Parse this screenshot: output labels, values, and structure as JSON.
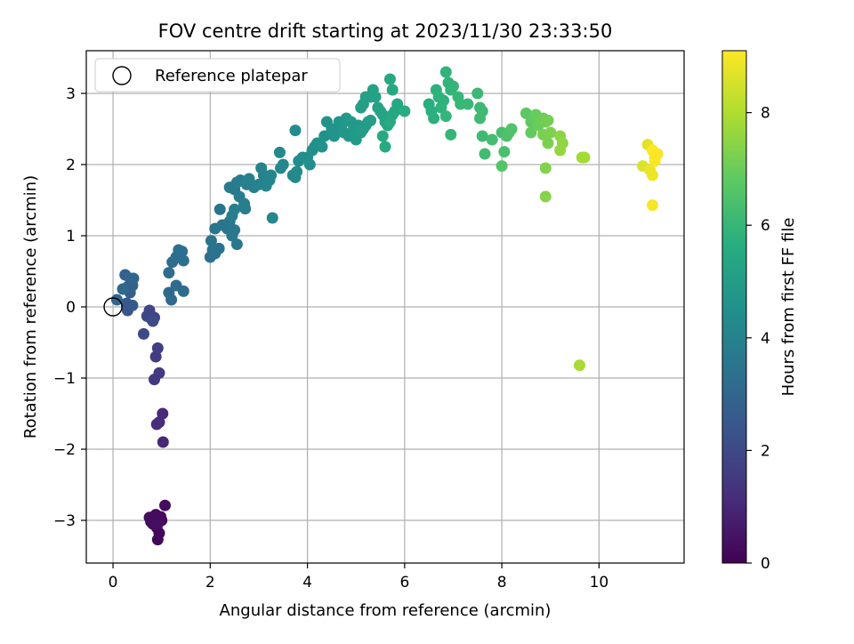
{
  "chart_data": {
    "type": "scatter",
    "title": "FOV centre drift starting at 2023/11/30 23:33:50",
    "xlabel": "Angular distance from reference (arcmin)",
    "ylabel": "Rotation from reference (arcmin)",
    "xlim": [
      -0.55,
      11.75
    ],
    "ylim": [
      -3.6,
      3.6
    ],
    "xticks": [
      0,
      2,
      4,
      6,
      8,
      10
    ],
    "yticks": [
      -3,
      -2,
      -1,
      0,
      1,
      2,
      3
    ],
    "xtick_labels": [
      "0",
      "2",
      "4",
      "6",
      "8",
      "10"
    ],
    "ytick_labels": [
      "−3",
      "−2",
      "−1",
      "0",
      "1",
      "2",
      "3"
    ],
    "grid": true,
    "legend": {
      "placement": "top-left",
      "entries": [
        {
          "label": "Reference platepar",
          "marker": "open-circle"
        }
      ]
    },
    "reference_point": {
      "x": 0,
      "y": 0
    },
    "colorbar": {
      "label": "Hours from first FF file",
      "min": 0,
      "max": 9.1,
      "ticks": [
        0,
        2,
        4,
        6,
        8
      ],
      "tick_labels": [
        "0",
        "2",
        "4",
        "6",
        "8"
      ],
      "colormap": "viridis"
    },
    "points": [
      [
        0.85,
        -3.0,
        0.05
      ],
      [
        0.9,
        -3.1,
        0.1
      ],
      [
        0.78,
        -3.02,
        0.12
      ],
      [
        0.95,
        -3.18,
        0.15
      ],
      [
        0.92,
        -3.27,
        0.18
      ],
      [
        1.0,
        -3.0,
        0.2
      ],
      [
        0.88,
        -2.92,
        0.22
      ],
      [
        0.98,
        -2.95,
        0.25
      ],
      [
        0.75,
        -2.96,
        0.28
      ],
      [
        1.07,
        -2.79,
        0.3
      ],
      [
        0.82,
        -3.05,
        0.32
      ],
      [
        0.92,
        -3.05,
        0.35
      ],
      [
        1.03,
        -1.9,
        1.0
      ],
      [
        1.02,
        -1.5,
        1.05
      ],
      [
        0.95,
        -1.62,
        1.1
      ],
      [
        0.9,
        -1.65,
        1.15
      ],
      [
        0.85,
        -1.02,
        1.5
      ],
      [
        0.95,
        -0.93,
        1.55
      ],
      [
        0.88,
        -0.7,
        1.6
      ],
      [
        0.92,
        -0.58,
        1.65
      ],
      [
        0.8,
        -0.18,
        1.8
      ],
      [
        0.85,
        -0.15,
        1.85
      ],
      [
        0.75,
        -0.05,
        1.9
      ],
      [
        0.7,
        -0.13,
        1.95
      ],
      [
        0.63,
        -0.38,
        2.0
      ],
      [
        0.82,
        -0.2,
        2.05
      ],
      [
        0.3,
        -0.05,
        2.4
      ],
      [
        0.35,
        0.02,
        2.45
      ],
      [
        0.28,
        0.05,
        2.5
      ],
      [
        0.4,
        0.02,
        2.55
      ],
      [
        0.35,
        0.2,
        2.7
      ],
      [
        0.3,
        0.28,
        2.75
      ],
      [
        0.4,
        0.3,
        2.8
      ],
      [
        0.25,
        0.45,
        2.85
      ],
      [
        0.35,
        0.4,
        2.9
      ],
      [
        0.42,
        0.4,
        2.95
      ],
      [
        0.08,
        0.1,
        3.0
      ],
      [
        0.2,
        0.25,
        3.05
      ],
      [
        1.15,
        0.2,
        3.1
      ],
      [
        1.2,
        0.1,
        3.12
      ],
      [
        1.3,
        0.3,
        3.15
      ],
      [
        1.45,
        0.22,
        3.18
      ],
      [
        1.15,
        0.48,
        3.2
      ],
      [
        1.22,
        0.63,
        3.22
      ],
      [
        1.3,
        0.7,
        3.25
      ],
      [
        1.35,
        0.8,
        3.27
      ],
      [
        1.42,
        0.78,
        3.3
      ],
      [
        1.45,
        0.65,
        3.32
      ],
      [
        2.0,
        0.7,
        3.35
      ],
      [
        2.05,
        0.8,
        3.37
      ],
      [
        2.1,
        0.75,
        3.4
      ],
      [
        2.18,
        0.82,
        3.42
      ],
      [
        2.02,
        0.93,
        3.45
      ],
      [
        2.1,
        1.1,
        3.47
      ],
      [
        2.2,
        1.37,
        3.5
      ],
      [
        2.25,
        1.15,
        3.52
      ],
      [
        2.35,
        1.1,
        3.55
      ],
      [
        2.4,
        1.2,
        3.57
      ],
      [
        2.45,
        1.0,
        3.6
      ],
      [
        2.5,
        1.08,
        3.62
      ],
      [
        2.55,
        0.88,
        3.65
      ],
      [
        2.4,
        1.68,
        3.7
      ],
      [
        2.5,
        1.65,
        3.72
      ],
      [
        2.55,
        1.75,
        3.75
      ],
      [
        2.6,
        1.55,
        3.77
      ],
      [
        2.62,
        1.78,
        3.8
      ],
      [
        2.45,
        1.28,
        3.82
      ],
      [
        2.5,
        1.37,
        3.85
      ],
      [
        2.72,
        1.38,
        3.87
      ],
      [
        2.7,
        1.45,
        3.9
      ],
      [
        2.75,
        1.72,
        3.92
      ],
      [
        2.8,
        1.8,
        3.95
      ],
      [
        2.9,
        1.68,
        3.97
      ],
      [
        3.0,
        1.72,
        4.0
      ],
      [
        3.05,
        1.95,
        4.02
      ],
      [
        3.1,
        1.85,
        4.05
      ],
      [
        3.15,
        1.7,
        4.07
      ],
      [
        3.22,
        1.78,
        4.1
      ],
      [
        3.25,
        1.85,
        4.12
      ],
      [
        3.28,
        1.25,
        4.15
      ],
      [
        3.45,
        1.95,
        4.2
      ],
      [
        3.5,
        2.0,
        4.22
      ],
      [
        3.43,
        2.17,
        4.25
      ],
      [
        3.7,
        1.85,
        4.27
      ],
      [
        3.75,
        1.82,
        4.3
      ],
      [
        3.78,
        1.9,
        4.32
      ],
      [
        3.82,
        2.05,
        4.35
      ],
      [
        3.75,
        2.48,
        4.4
      ],
      [
        3.9,
        2.1,
        4.42
      ],
      [
        4.0,
        2.1,
        4.45
      ],
      [
        4.05,
        2.0,
        4.47
      ],
      [
        4.1,
        2.2,
        4.5
      ],
      [
        4.15,
        2.25,
        4.52
      ],
      [
        4.2,
        2.3,
        4.55
      ],
      [
        4.3,
        2.25,
        4.57
      ],
      [
        4.35,
        2.4,
        4.6
      ],
      [
        4.4,
        2.6,
        4.62
      ],
      [
        4.5,
        2.5,
        4.65
      ],
      [
        4.55,
        2.4,
        4.67
      ],
      [
        4.6,
        2.45,
        4.7
      ],
      [
        4.65,
        2.6,
        4.72
      ],
      [
        4.7,
        2.55,
        4.75
      ],
      [
        4.75,
        2.45,
        4.77
      ],
      [
        4.8,
        2.65,
        4.8
      ],
      [
        4.85,
        2.4,
        4.82
      ],
      [
        4.9,
        2.6,
        4.85
      ],
      [
        4.95,
        2.5,
        4.87
      ],
      [
        5.0,
        2.35,
        4.9
      ],
      [
        5.05,
        2.55,
        4.92
      ],
      [
        5.1,
        2.45,
        4.95
      ],
      [
        5.15,
        2.5,
        4.97
      ],
      [
        5.2,
        2.55,
        5.0
      ],
      [
        5.25,
        2.6,
        5.02
      ],
      [
        5.3,
        2.62,
        5.05
      ],
      [
        5.1,
        2.8,
        5.07
      ],
      [
        5.15,
        2.85,
        5.1
      ],
      [
        5.2,
        2.95,
        5.12
      ],
      [
        5.3,
        2.95,
        5.15
      ],
      [
        5.35,
        3.05,
        5.17
      ],
      [
        5.4,
        2.95,
        5.2
      ],
      [
        5.45,
        2.8,
        5.22
      ],
      [
        5.5,
        2.75,
        5.25
      ],
      [
        5.55,
        2.7,
        5.27
      ],
      [
        5.6,
        2.6,
        5.3
      ],
      [
        5.65,
        2.55,
        5.32
      ],
      [
        5.7,
        2.65,
        5.35
      ],
      [
        5.75,
        2.7,
        5.37
      ],
      [
        5.8,
        2.75,
        5.4
      ],
      [
        5.85,
        2.85,
        5.42
      ],
      [
        5.7,
        3.2,
        5.45
      ],
      [
        5.75,
        3.05,
        5.47
      ],
      [
        5.55,
        2.4,
        5.5
      ],
      [
        5.6,
        2.25,
        5.52
      ],
      [
        5.7,
        2.6,
        5.55
      ],
      [
        6.0,
        2.75,
        5.57
      ],
      [
        6.5,
        2.85,
        5.7
      ],
      [
        6.55,
        2.75,
        5.72
      ],
      [
        6.6,
        2.65,
        5.75
      ],
      [
        6.65,
        3.05,
        5.77
      ],
      [
        6.7,
        2.95,
        5.8
      ],
      [
        6.75,
        2.8,
        5.82
      ],
      [
        6.8,
        2.9,
        5.85
      ],
      [
        6.85,
        3.3,
        5.87
      ],
      [
        6.9,
        3.15,
        5.9
      ],
      [
        6.95,
        3.05,
        5.92
      ],
      [
        7.0,
        3.1,
        5.95
      ],
      [
        6.85,
        2.68,
        5.97
      ],
      [
        6.95,
        2.42,
        6.0
      ],
      [
        7.1,
        2.95,
        6.02
      ],
      [
        7.15,
        2.85,
        6.05
      ],
      [
        7.3,
        2.85,
        6.07
      ],
      [
        7.5,
        3.0,
        6.1
      ],
      [
        7.55,
        2.8,
        6.12
      ],
      [
        7.6,
        2.75,
        6.15
      ],
      [
        7.55,
        2.65,
        6.17
      ],
      [
        7.6,
        2.4,
        6.2
      ],
      [
        7.65,
        2.15,
        6.22
      ],
      [
        7.8,
        2.35,
        6.3
      ],
      [
        8.0,
        2.45,
        6.35
      ],
      [
        8.05,
        2.18,
        6.4
      ],
      [
        8.1,
        2.4,
        6.45
      ],
      [
        8.15,
        2.45,
        6.5
      ],
      [
        8.2,
        2.5,
        6.55
      ],
      [
        8.0,
        1.98,
        6.6
      ],
      [
        8.5,
        2.72,
        6.8
      ],
      [
        8.6,
        2.6,
        6.85
      ],
      [
        8.6,
        2.45,
        6.9
      ],
      [
        8.7,
        2.7,
        6.95
      ],
      [
        8.75,
        2.55,
        7.0
      ],
      [
        8.85,
        2.65,
        7.05
      ],
      [
        8.9,
        2.6,
        7.1
      ],
      [
        8.95,
        2.62,
        7.15
      ],
      [
        8.85,
        2.42,
        7.2
      ],
      [
        8.95,
        2.3,
        7.25
      ],
      [
        9.0,
        2.45,
        7.3
      ],
      [
        8.9,
        1.95,
        7.35
      ],
      [
        8.9,
        1.55,
        7.4
      ],
      [
        9.2,
        2.4,
        7.5
      ],
      [
        9.25,
        2.3,
        7.55
      ],
      [
        9.2,
        2.2,
        7.6
      ],
      [
        9.65,
        2.1,
        7.8
      ],
      [
        9.7,
        2.1,
        7.85
      ],
      [
        9.6,
        -0.82,
        7.9
      ],
      [
        10.9,
        1.98,
        8.6
      ],
      [
        11.0,
        2.28,
        8.7
      ],
      [
        11.1,
        2.2,
        8.8
      ],
      [
        11.05,
        1.92,
        8.85
      ],
      [
        11.1,
        1.85,
        8.9
      ],
      [
        11.15,
        2.1,
        8.95
      ],
      [
        11.2,
        2.15,
        9.0
      ],
      [
        11.1,
        1.43,
        9.0
      ],
      [
        11.15,
        2.05,
        9.05
      ],
      [
        11.1,
        2.2,
        9.1
      ]
    ]
  }
}
